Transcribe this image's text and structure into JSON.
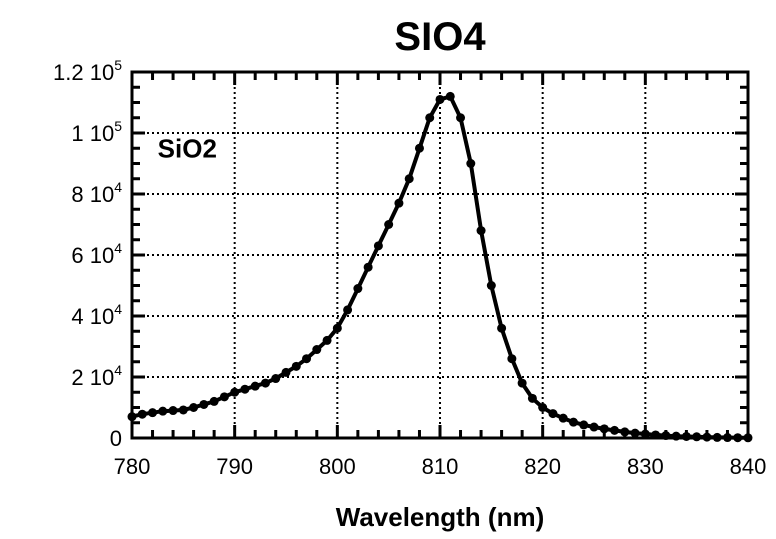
{
  "chart_data": {
    "type": "line",
    "title": "SIO4",
    "xlabel": "Wavelength (nm)",
    "ylabel": "",
    "xlim": [
      780,
      840
    ],
    "ylim": [
      0,
      120000
    ],
    "grid": true,
    "x_ticks": [
      {
        "value": 780,
        "label": "780"
      },
      {
        "value": 790,
        "label": "790"
      },
      {
        "value": 800,
        "label": "800"
      },
      {
        "value": 810,
        "label": "810"
      },
      {
        "value": 820,
        "label": "820"
      },
      {
        "value": 830,
        "label": "830"
      },
      {
        "value": 840,
        "label": "840"
      }
    ],
    "y_ticks": [
      {
        "value": 0,
        "mant": "0",
        "exp": ""
      },
      {
        "value": 20000,
        "mant": "2 10",
        "exp": "4"
      },
      {
        "value": 40000,
        "mant": "4 10",
        "exp": "4"
      },
      {
        "value": 60000,
        "mant": "6 10",
        "exp": "4"
      },
      {
        "value": 80000,
        "mant": "8 10",
        "exp": "4"
      },
      {
        "value": 100000,
        "mant": "1 10",
        "exp": "5"
      },
      {
        "value": 120000,
        "mant": "1.2 10",
        "exp": "5"
      }
    ],
    "annotations": [
      {
        "text": "SiO2",
        "x": 782.5,
        "y": 92000
      }
    ],
    "series": [
      {
        "x": [
          780,
          781,
          782,
          783,
          784,
          785,
          786,
          787,
          788,
          789,
          790,
          791,
          792,
          793,
          794,
          795,
          796,
          797,
          798,
          799,
          800,
          801,
          802,
          803,
          804,
          805,
          806,
          807,
          808,
          809,
          810,
          811,
          812,
          813,
          814,
          815,
          816,
          817,
          818,
          819,
          820,
          821,
          822,
          823,
          824,
          825,
          826,
          827,
          828,
          829,
          830,
          831,
          832,
          833,
          834,
          835,
          836,
          837,
          838,
          839,
          840
        ],
        "y": [
          7000,
          7800,
          8300,
          8800,
          9000,
          9200,
          10000,
          11000,
          12000,
          13500,
          15000,
          16000,
          17000,
          18000,
          19500,
          21500,
          23500,
          26000,
          29000,
          32000,
          36000,
          42000,
          49000,
          56000,
          63000,
          70000,
          77000,
          85000,
          95000,
          105000,
          111000,
          112000,
          105000,
          90000,
          68000,
          50000,
          36000,
          26000,
          18000,
          13000,
          10000,
          8000,
          6500,
          5200,
          4300,
          3600,
          3000,
          2500,
          2000,
          1600,
          1300,
          1000,
          800,
          600,
          500,
          400,
          300,
          200,
          150,
          100,
          80
        ]
      }
    ]
  }
}
